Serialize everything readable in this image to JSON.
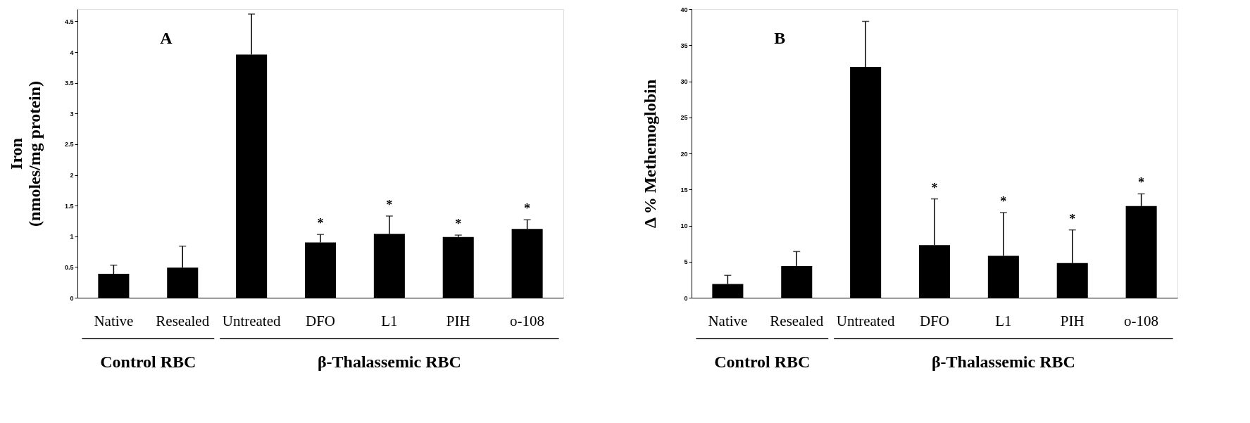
{
  "chart_data": [
    {
      "type": "bar",
      "ylabel": "Iron\n(nmoles/mg protein)",
      "categories": [
        "Native",
        "Resealed",
        "Untreated",
        "DFO",
        "L1",
        "PIH",
        "o-108"
      ],
      "series": [
        {
          "color": "#000000",
          "values": [
            0.39,
            0.49,
            3.96,
            0.9,
            1.04,
            0.99,
            1.12
          ],
          "errors": [
            [
              0.39,
              0.53
            ],
            [
              0.49,
              0.84
            ],
            [
              3.96,
              4.62
            ],
            [
              0.9,
              1.03
            ],
            [
              1.04,
              1.33
            ],
            [
              0.99,
              1.02
            ],
            [
              1.12,
              1.27
            ]
          ]
        }
      ],
      "ylim": [
        0,
        4.7
      ],
      "yticks": [
        0,
        0.5,
        1,
        1.5,
        2,
        2.5,
        3,
        3.5,
        4,
        4.5
      ],
      "grid": false,
      "annotations": [
        "A",
        "Control RBC",
        "β-Thalassemic RBC",
        "*",
        "*",
        "*",
        "*"
      ]
    },
    {
      "type": "bar",
      "ylabel": "Δ % Methemoglobin",
      "categories": [
        "Native",
        "Resealed",
        "Untreated",
        "DFO",
        "L1",
        "PIH",
        "o-108"
      ],
      "series": [
        {
          "color": "#000000",
          "values": [
            1.9,
            4.4,
            32.0,
            7.3,
            5.8,
            4.8,
            12.7
          ],
          "errors": [
            [
              1.9,
              3.1
            ],
            [
              4.4,
              6.4
            ],
            [
              32.0,
              38.3
            ],
            [
              7.3,
              13.7
            ],
            [
              5.8,
              11.8
            ],
            [
              4.8,
              9.4
            ],
            [
              12.7,
              14.4
            ]
          ]
        }
      ],
      "ylim": [
        0,
        40
      ],
      "yticks": [
        0,
        5,
        10,
        15,
        20,
        25,
        30,
        35,
        40
      ],
      "grid": false,
      "annotations": [
        "B",
        "Control RBC",
        "β-Thalassemic RBC",
        "*",
        "*",
        "*",
        "*"
      ]
    }
  ]
}
